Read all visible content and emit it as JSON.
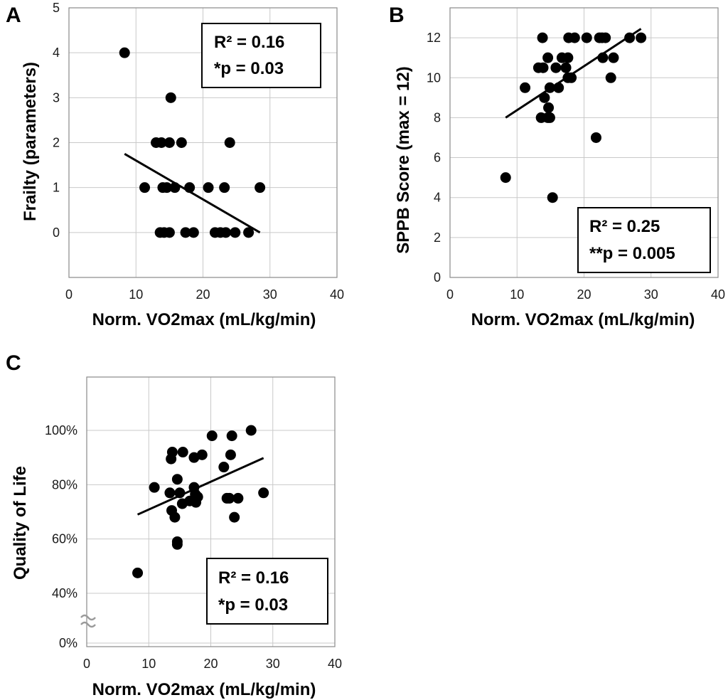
{
  "chart_data": [
    {
      "type": "scatter",
      "panel": "A",
      "xlabel": "Norm. VO2max (mL/kg/min)",
      "ylabel": "Frailty (parameters)",
      "xlim": [
        0,
        40
      ],
      "ylim": [
        -1,
        5
      ],
      "xticks": [
        0,
        10,
        20,
        30,
        40
      ],
      "yticks": [
        0,
        1,
        2,
        3,
        4,
        5
      ],
      "ytick_labels": [
        "0",
        "1",
        "2",
        "3",
        "4",
        "5"
      ],
      "points": [
        [
          8.3,
          4
        ],
        [
          15.2,
          3
        ],
        [
          13.0,
          2
        ],
        [
          13.8,
          2
        ],
        [
          15.0,
          2
        ],
        [
          16.8,
          2
        ],
        [
          24.0,
          2
        ],
        [
          11.3,
          1
        ],
        [
          14.0,
          1
        ],
        [
          14.6,
          1
        ],
        [
          15.8,
          1
        ],
        [
          18.0,
          1
        ],
        [
          20.8,
          1
        ],
        [
          23.2,
          1
        ],
        [
          28.5,
          1
        ],
        [
          13.6,
          0
        ],
        [
          14.2,
          0
        ],
        [
          15.0,
          0
        ],
        [
          17.4,
          0
        ],
        [
          18.6,
          0
        ],
        [
          21.8,
          0
        ],
        [
          22.6,
          0
        ],
        [
          23.4,
          0
        ],
        [
          24.8,
          0
        ],
        [
          26.8,
          0
        ]
      ],
      "fit": {
        "x": [
          8.3,
          28.5
        ],
        "y": [
          1.75,
          0.0
        ]
      },
      "stats": {
        "r2": "R² = 0.16",
        "p": "*p = 0.03"
      }
    },
    {
      "type": "scatter",
      "panel": "B",
      "xlabel": "Norm. VO2max (mL/kg/min)",
      "ylabel": "SPPB Score (max = 12)",
      "xlim": [
        0,
        40
      ],
      "ylim": [
        0,
        13.5
      ],
      "xticks": [
        0,
        10,
        20,
        30,
        40
      ],
      "yticks": [
        0,
        2,
        4,
        6,
        8,
        10,
        12
      ],
      "ytick_labels": [
        "0",
        "2",
        "4",
        "6",
        "8",
        "10",
        "12"
      ],
      "points": [
        [
          8.3,
          5
        ],
        [
          15.3,
          4
        ],
        [
          21.8,
          7
        ],
        [
          13.6,
          8
        ],
        [
          14.6,
          8
        ],
        [
          14.9,
          8
        ],
        [
          14.7,
          8.5
        ],
        [
          14.1,
          9
        ],
        [
          11.2,
          9.5
        ],
        [
          14.9,
          9.5
        ],
        [
          16.2,
          9.5
        ],
        [
          17.6,
          10
        ],
        [
          18.1,
          10
        ],
        [
          24.0,
          10
        ],
        [
          13.2,
          10.5
        ],
        [
          13.9,
          10.5
        ],
        [
          15.8,
          10.5
        ],
        [
          17.3,
          10.5
        ],
        [
          14.6,
          11
        ],
        [
          16.7,
          11
        ],
        [
          17.6,
          11
        ],
        [
          22.8,
          11
        ],
        [
          24.4,
          11
        ],
        [
          13.8,
          12
        ],
        [
          17.7,
          12
        ],
        [
          18.6,
          12
        ],
        [
          20.4,
          12
        ],
        [
          22.3,
          12
        ],
        [
          22.7,
          12
        ],
        [
          23.2,
          12
        ],
        [
          26.8,
          12
        ],
        [
          28.5,
          12
        ]
      ],
      "fit": {
        "x": [
          8.3,
          28.5
        ],
        "y": [
          8.0,
          12.45
        ]
      },
      "stats": {
        "r2": "R² = 0.25",
        "p": "**p = 0.005"
      }
    },
    {
      "type": "scatter",
      "panel": "C",
      "xlabel": "Norm. VO2max (mL/kg/min)",
      "ylabel": "Quality of Life",
      "xlim": [
        0,
        40
      ],
      "axis_break": true,
      "xticks": [
        0,
        10,
        20,
        30,
        40
      ],
      "yticks": [
        0,
        40,
        60,
        80,
        100
      ],
      "ytick_labels": [
        "0%",
        "40%",
        "60%",
        "80%",
        "100%"
      ],
      "points": [
        [
          8.2,
          47.5
        ],
        [
          10.9,
          79
        ],
        [
          13.4,
          77
        ],
        [
          13.8,
          92
        ],
        [
          13.6,
          89.5
        ],
        [
          13.7,
          70.5
        ],
        [
          14.2,
          68
        ],
        [
          14.6,
          58
        ],
        [
          14.6,
          59
        ],
        [
          14.6,
          82
        ],
        [
          15.0,
          77
        ],
        [
          15.4,
          73
        ],
        [
          15.5,
          92
        ],
        [
          16.6,
          74
        ],
        [
          17.3,
          90
        ],
        [
          17.5,
          76.5
        ],
        [
          17.3,
          79
        ],
        [
          17.6,
          73.5
        ],
        [
          17.9,
          75.5
        ],
        [
          18.6,
          91
        ],
        [
          20.2,
          98
        ],
        [
          22.1,
          86.5
        ],
        [
          22.6,
          75
        ],
        [
          23.2,
          91
        ],
        [
          23.4,
          98
        ],
        [
          23.0,
          75
        ],
        [
          23.8,
          68
        ],
        [
          24.4,
          75
        ],
        [
          26.5,
          100
        ],
        [
          28.5,
          77
        ]
      ],
      "fit": {
        "x": [
          8.2,
          28.5
        ],
        "y": [
          69.0,
          89.8
        ]
      },
      "stats": {
        "r2": "R² = 0.16",
        "p": "*p = 0.03"
      }
    }
  ]
}
